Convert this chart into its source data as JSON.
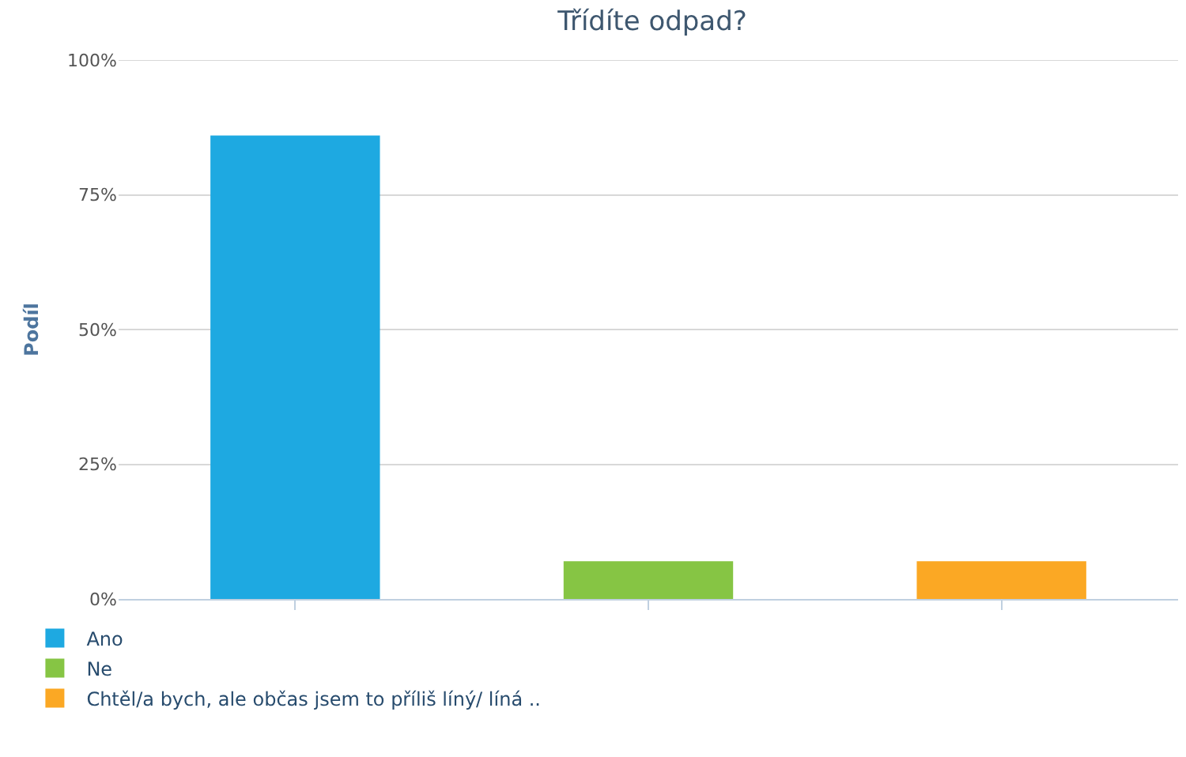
{
  "chart_data": {
    "type": "bar",
    "title": "Třídíte odpad?",
    "ylabel": "Podíl",
    "categories": [
      null,
      null,
      null
    ],
    "series": [
      {
        "name": "Ano",
        "color": "#1ea9e1",
        "values": [
          86,
          null,
          null
        ]
      },
      {
        "name": "Ne",
        "color": "#86c544",
        "values": [
          null,
          7,
          null
        ]
      },
      {
        "name": "Chtěl/a bych, ale občas jsem to příliš líný/ líná ..",
        "color": "#fba824",
        "values": [
          null,
          null,
          7
        ]
      }
    ],
    "ylim": [
      0,
      100
    ],
    "yticks": [
      {
        "value": 0,
        "label": "0%"
      },
      {
        "value": 25,
        "label": "25%"
      },
      {
        "value": 50,
        "label": "50%"
      },
      {
        "value": 75,
        "label": "75%"
      },
      {
        "value": 100,
        "label": "100%"
      }
    ],
    "grid": "y",
    "legend": "bottom left"
  }
}
